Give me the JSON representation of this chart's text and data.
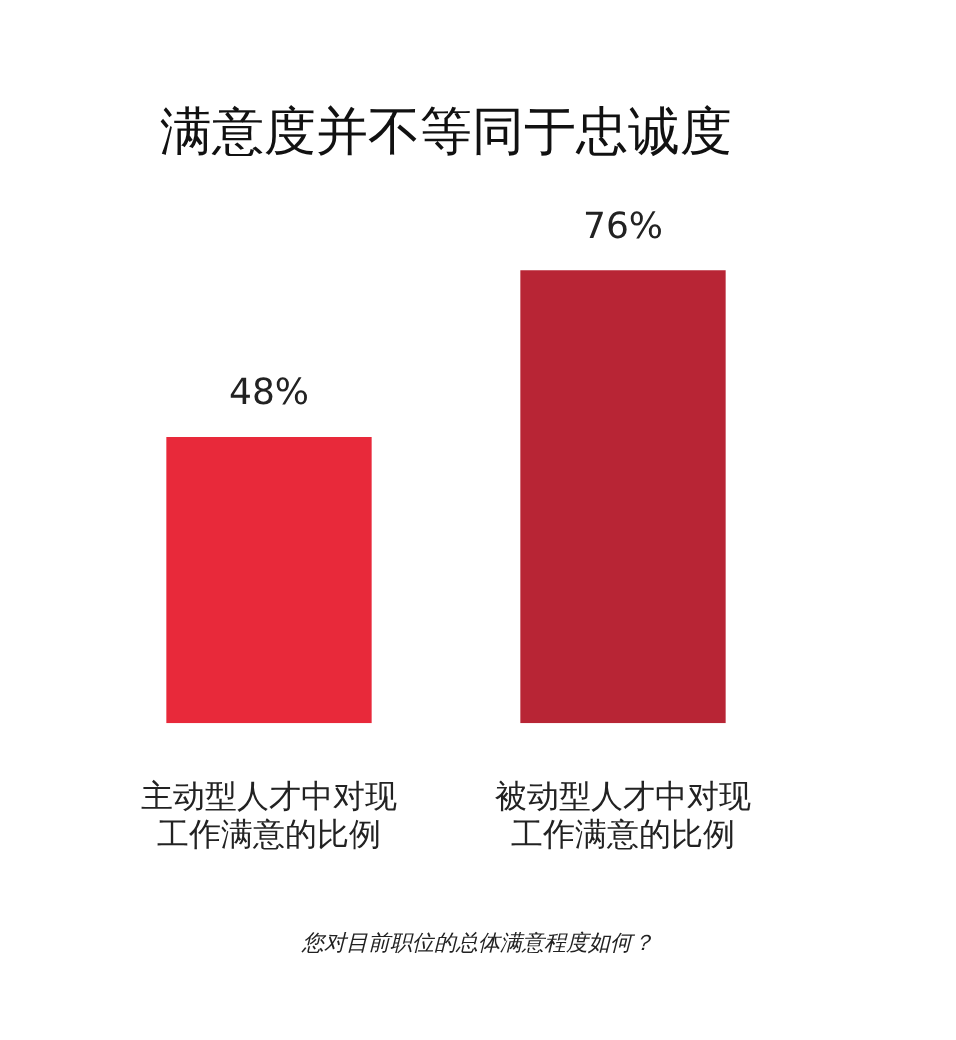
{
  "chart_data": {
    "type": "bar",
    "title": "满意度并不等同于忠诚度",
    "categories": [
      "主动型人才中对现工作满意的比例",
      "被动型人才中对现工作满意的比例"
    ],
    "values": [
      48,
      76
    ],
    "colors": [
      "#e8293a",
      "#b82535"
    ],
    "value_labels": [
      "48%",
      "76%"
    ],
    "tick_labels": "x",
    "annotations": [
      "您对目前职位的总体满意程度如何？"
    ]
  }
}
